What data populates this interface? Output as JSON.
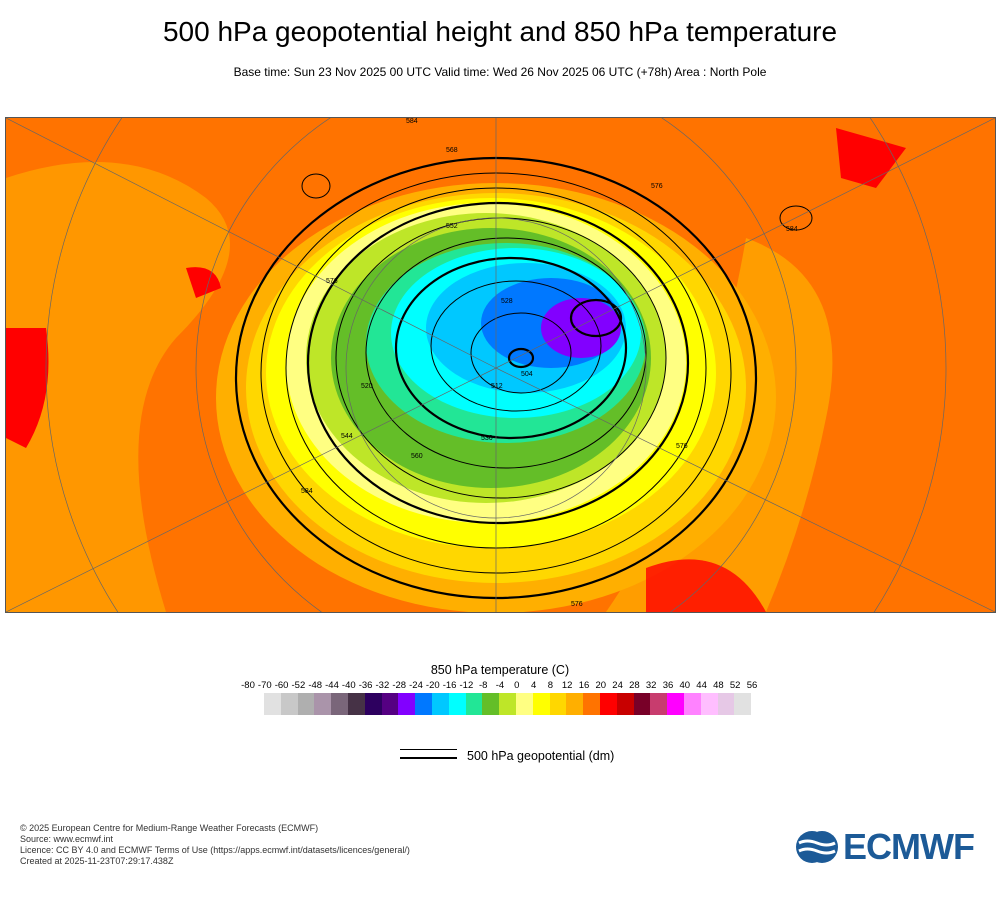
{
  "header": {
    "title": "500 hPa geopotential height and 850 hPa temperature",
    "subtitle": "Base time: Sun 23 Nov 2025 00 UTC Valid time: Wed 26 Nov 2025 06 UTC (+78h) Area : North Pole"
  },
  "chart_data": {
    "type": "heatmap",
    "title": "500 hPa geopotential height and 850 hPa temperature",
    "area": "North Pole",
    "contour_labels": [
      "584",
      "568",
      "576",
      "584",
      "552",
      "528",
      "512",
      "504",
      "520",
      "536",
      "544",
      "560",
      "576",
      "584",
      "576",
      "576"
    ],
    "colorbar": {
      "title": "850 hPa temperature (C)",
      "ticks": [
        "-80",
        "-70",
        "-60",
        "-52",
        "-48",
        "-44",
        "-40",
        "-36",
        "-32",
        "-28",
        "-24",
        "-20",
        "-16",
        "-12",
        "-8",
        "-4",
        "0",
        "4",
        "8",
        "12",
        "16",
        "20",
        "24",
        "28",
        "32",
        "36",
        "40",
        "44",
        "48",
        "52",
        "56"
      ],
      "colors": [
        "#e1e1e1",
        "#c8c8c8",
        "#afafaf",
        "#aa94aa",
        "#7a667a",
        "#463246",
        "#2d005f",
        "#550082",
        "#8200ff",
        "#0078ff",
        "#00c8ff",
        "#00ffff",
        "#22e696",
        "#64be28",
        "#bee628",
        "#ffff82",
        "#ffff00",
        "#ffd700",
        "#ffaf00",
        "#ff7300",
        "#ff0000",
        "#c80000",
        "#780028",
        "#c83c6e",
        "#ff00ff",
        "#ff82ff",
        "#ffbeff",
        "#e6c8e6",
        "#e1e1e1"
      ]
    },
    "legend": {
      "line_label": "500 hPa geopotential (dm)"
    }
  },
  "footer": {
    "lines": [
      "© 2025 European Centre for Medium-Range Weather Forecasts (ECMWF)",
      "Source: www.ecmwf.int",
      "Licence: CC BY 4.0 and ECMWF Terms of Use (https://apps.ecmwf.int/datasets/licences/general/)",
      "Created at 2025-11-23T07:29:17.438Z"
    ],
    "logo": "ECMWF"
  }
}
